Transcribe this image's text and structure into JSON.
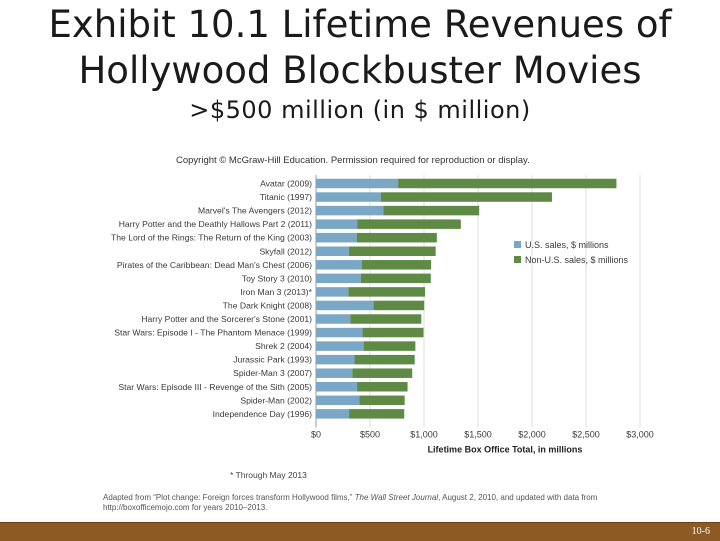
{
  "title": {
    "line1": "Exhibit 10.1  Lifetime Revenues of",
    "line2": "Hollywood Blockbuster Movies"
  },
  "subtitle": ">$500 million (in $ million)",
  "copyright": "Copyright © McGraw-Hill Education. Permission required for reproduction or display.",
  "chart_note": "* Through May 2013",
  "source": {
    "prefix": "Adapted from “Plot change: Foreign forces transform Hollywood films,” ",
    "journal": "The Wall Street Journal",
    "suffix": ", August 2, 2010, and updated with data from http://boxofficemojo.com for years 2010–2013."
  },
  "page_number": "10-6",
  "chart_data": {
    "type": "bar",
    "orientation": "horizontal",
    "stacked": true,
    "title": "Lifetime Revenues of Hollywood Blockbuster Movies",
    "xlabel": "Lifetime Box Office Total, in millions",
    "ylabel": "",
    "xlim": [
      0,
      3000
    ],
    "xticks": [
      0,
      500,
      1000,
      1500,
      2000,
      2500,
      3000
    ],
    "xtick_labels": [
      "$0",
      "$500",
      "$1,000",
      "$1,500",
      "$2,000",
      "$2,500",
      "$3,000"
    ],
    "grid": true,
    "legend_position": "right",
    "categories": [
      "Avatar (2009)",
      "Titanic (1997)",
      "Marvel's The Avengers (2012)",
      "Harry Potter and the Deathly Hallows Part 2 (2011)",
      "The Lord of the Rings: The Return of the King (2003)",
      "Skyfall (2012)",
      "Pirates of the Caribbean: Dead Man's Chest (2006)",
      "Toy Story 3 (2010)",
      "Iron Man 3 (2013)*",
      "The Dark Knight (2008)",
      "Harry Potter and the Sorcerer's Stone (2001)",
      "Star Wars: Episode I - The Phantom Menace (1999)",
      "Shrek 2 (2004)",
      "Jurassic Park (1993)",
      "Spider-Man 3 (2007)",
      "Star Wars: Episode III - Revenge of the Sith (2005)",
      "Spider-Man (2002)",
      "Independence Day (1996)"
    ],
    "series": [
      {
        "name": "U.S. sales, $ millions",
        "color": "#7ba7c7",
        "values": [
          760,
          600,
          623,
          381,
          377,
          304,
          423,
          415,
          300,
          533,
          318,
          431,
          441,
          357,
          336,
          380,
          403,
          306
        ]
      },
      {
        "name": "Non-U.S. sales, $ millions",
        "color": "#5f8a45",
        "values": [
          2022,
          1585,
          888,
          960,
          742,
          804,
          643,
          648,
          710,
          469,
          657,
          564,
          479,
          557,
          555,
          468,
          418,
          511
        ]
      }
    ]
  }
}
